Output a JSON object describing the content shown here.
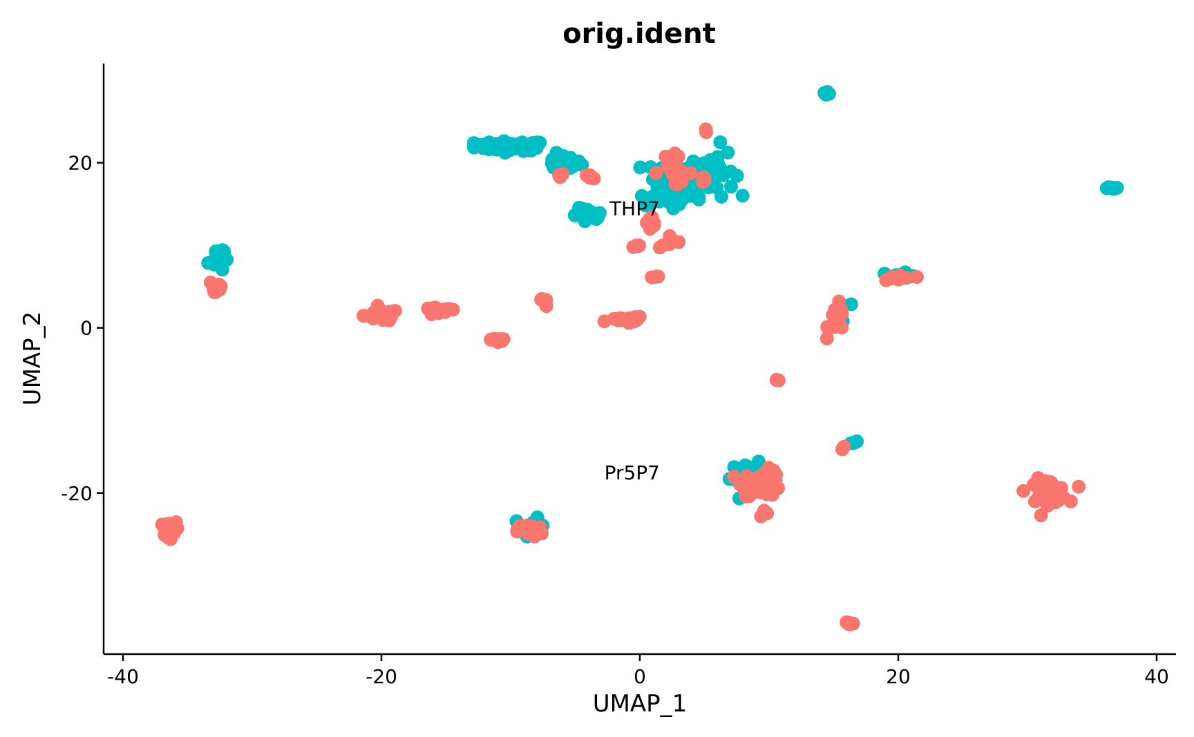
{
  "chart_data": {
    "type": "scatter",
    "title": "orig.ident",
    "xlabel": "UMAP_1",
    "ylabel": "UMAP_2",
    "xlim": [
      -41.5,
      41.5
    ],
    "ylim": [
      -39.5,
      32
    ],
    "xticks": [
      -40,
      -20,
      0,
      20,
      40
    ],
    "yticks": [
      -20,
      0,
      20
    ],
    "xtick_labels": [
      "-40",
      "-20",
      "0",
      "20",
      "40"
    ],
    "ytick_labels": [
      "-20",
      "0",
      "20"
    ],
    "grid": false,
    "legend": "none",
    "annotations": [
      {
        "label": "THP7",
        "x": -0.4,
        "y": 14.5
      },
      {
        "label": "Pr5P7",
        "x": -0.6,
        "y": -17.5
      }
    ],
    "series": [
      {
        "color": "#00BFC4",
        "clusters": [
          {
            "cx": -10,
            "cy": 22,
            "sx": 2.3,
            "sy": 0.5,
            "n": 60
          },
          {
            "cx": -6,
            "cy": 20,
            "sx": 1.2,
            "sy": 0.8,
            "n": 20
          },
          {
            "cx": -4,
            "cy": 13.5,
            "sx": 1.0,
            "sy": 0.8,
            "n": 20
          },
          {
            "cx": 2.5,
            "cy": 17.5,
            "sx": 1.8,
            "sy": 3.0,
            "n": 60
          },
          {
            "cx": 5.5,
            "cy": 19,
            "sx": 1.5,
            "sy": 2.5,
            "n": 40
          },
          {
            "cx": 14.5,
            "cy": 28.3,
            "sx": 0.2,
            "sy": 0.2,
            "n": 5
          },
          {
            "cx": 36.5,
            "cy": 17,
            "sx": 0.4,
            "sy": 0.2,
            "n": 6
          },
          {
            "cx": -32.8,
            "cy": 8.5,
            "sx": 0.5,
            "sy": 1.5,
            "n": 15
          },
          {
            "cx": 15.5,
            "cy": 1.5,
            "sx": 0.7,
            "sy": 1.3,
            "n": 12
          },
          {
            "cx": 20.5,
            "cy": 6.5,
            "sx": 0.9,
            "sy": 0.4,
            "n": 8
          },
          {
            "cx": 16.5,
            "cy": -13.8,
            "sx": 0.3,
            "sy": 0.3,
            "n": 4
          },
          {
            "cx": 8.5,
            "cy": -18,
            "sx": 1.3,
            "sy": 1.3,
            "n": 25
          },
          {
            "cx": -8.5,
            "cy": -24,
            "sx": 1.0,
            "sy": 0.8,
            "n": 14
          }
        ]
      },
      {
        "color": "#F8766D",
        "clusters": [
          {
            "cx": -6,
            "cy": 18.5,
            "sx": 0.3,
            "sy": 0.2,
            "n": 3
          },
          {
            "cx": -3.8,
            "cy": 18.3,
            "sx": 0.6,
            "sy": 0.2,
            "n": 4
          },
          {
            "cx": 2.5,
            "cy": 19,
            "sx": 1.3,
            "sy": 1.5,
            "n": 18
          },
          {
            "cx": 5,
            "cy": 24,
            "sx": 0.1,
            "sy": 0.2,
            "n": 2
          },
          {
            "cx": 5.2,
            "cy": 18,
            "sx": 0.4,
            "sy": 0.3,
            "n": 4
          },
          {
            "cx": 0.8,
            "cy": 12,
            "sx": 0.8,
            "sy": 1.2,
            "n": 8
          },
          {
            "cx": 2.5,
            "cy": 10.5,
            "sx": 0.8,
            "sy": 0.7,
            "n": 6
          },
          {
            "cx": -0.3,
            "cy": 9.8,
            "sx": 0.4,
            "sy": 0.3,
            "n": 5
          },
          {
            "cx": 1.2,
            "cy": 6.2,
            "sx": 0.3,
            "sy": 0.2,
            "n": 4
          },
          {
            "cx": -32.8,
            "cy": 5,
            "sx": 0.5,
            "sy": 1.0,
            "n": 14
          },
          {
            "cx": -20,
            "cy": 1.5,
            "sx": 1.1,
            "sy": 0.6,
            "n": 30
          },
          {
            "cx": -15.5,
            "cy": 2,
            "sx": 1.1,
            "sy": 0.4,
            "n": 18
          },
          {
            "cx": -11,
            "cy": -1.5,
            "sx": 0.6,
            "sy": 0.5,
            "n": 8
          },
          {
            "cx": -7.5,
            "cy": 3,
            "sx": 0.3,
            "sy": 0.4,
            "n": 5
          },
          {
            "cx": -1,
            "cy": 1,
            "sx": 1.1,
            "sy": 0.4,
            "n": 14
          },
          {
            "cx": 15.3,
            "cy": 1,
            "sx": 0.6,
            "sy": 1.5,
            "n": 16
          },
          {
            "cx": 20,
            "cy": 6,
            "sx": 1.0,
            "sy": 0.4,
            "n": 10
          },
          {
            "cx": 10.7,
            "cy": -6.3,
            "sx": 0.2,
            "sy": 0.2,
            "n": 3
          },
          {
            "cx": 15.8,
            "cy": -14.5,
            "sx": 0.2,
            "sy": 0.2,
            "n": 2
          },
          {
            "cx": 9.5,
            "cy": -18.8,
            "sx": 1.3,
            "sy": 1.3,
            "n": 40
          },
          {
            "cx": 9.8,
            "cy": -22.5,
            "sx": 0.5,
            "sy": 0.4,
            "n": 5
          },
          {
            "cx": 31.5,
            "cy": -19.8,
            "sx": 1.3,
            "sy": 1.2,
            "n": 50
          },
          {
            "cx": -36.5,
            "cy": -24.5,
            "sx": 0.5,
            "sy": 0.8,
            "n": 30
          },
          {
            "cx": -8.5,
            "cy": -24.5,
            "sx": 0.8,
            "sy": 0.7,
            "n": 28
          },
          {
            "cx": 16.2,
            "cy": -35.8,
            "sx": 0.3,
            "sy": 0.3,
            "n": 8
          }
        ]
      }
    ]
  }
}
